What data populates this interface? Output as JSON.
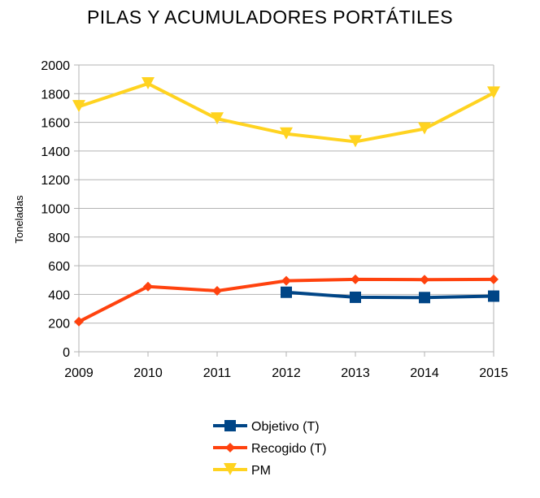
{
  "chart_data": {
    "type": "line",
    "title": "PILAS Y ACUMULADORES PORTÁTILES",
    "ylabel": "Toneladas",
    "xlabel": "",
    "categories": [
      "2009",
      "2010",
      "2011",
      "2012",
      "2013",
      "2014",
      "2015"
    ],
    "ylim": [
      0,
      2000
    ],
    "yticks": [
      0,
      200,
      400,
      600,
      800,
      1000,
      1200,
      1400,
      1600,
      1800,
      2000
    ],
    "grid": true,
    "legend_position": "bottom",
    "series": [
      {
        "name": "Objetivo (T)",
        "color": "#004586",
        "marker": "square",
        "values": [
          null,
          null,
          null,
          415,
          380,
          378,
          388
        ]
      },
      {
        "name": "Recogido (T)",
        "color": "#ff420e",
        "marker": "diamond",
        "values": [
          210,
          455,
          425,
          495,
          505,
          503,
          505
        ]
      },
      {
        "name": "PM",
        "color": "#ffd320",
        "marker": "triangle-down",
        "values": [
          1710,
          1870,
          1625,
          1520,
          1465,
          1555,
          1805
        ]
      }
    ]
  }
}
